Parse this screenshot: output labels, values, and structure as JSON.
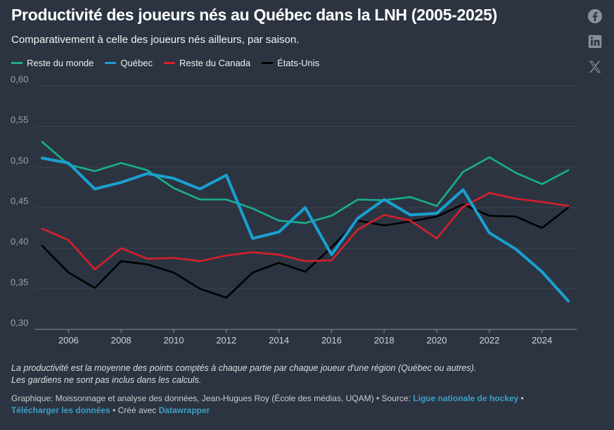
{
  "header": {
    "title": "Productivité des joueurs nés au Québec dans la LNH (2005-2025)",
    "subtitle": "Comparativement à celle des joueurs nés ailleurs, par saison."
  },
  "share_icons": [
    "facebook-icon",
    "linkedin-icon",
    "x-icon"
  ],
  "chart_data": {
    "type": "line",
    "title": "Productivité des joueurs nés au Québec dans la LNH (2005-2025)",
    "x": [
      2005,
      2006,
      2007,
      2008,
      2009,
      2010,
      2011,
      2012,
      2013,
      2014,
      2015,
      2016,
      2017,
      2018,
      2019,
      2020,
      2021,
      2022,
      2023,
      2024,
      2025
    ],
    "xticks": [
      "2006",
      "2008",
      "2010",
      "2012",
      "2014",
      "2016",
      "2018",
      "2020",
      "2022",
      "2024"
    ],
    "yticks": [
      "0,30",
      "0,35",
      "0,40",
      "0,45",
      "0,50",
      "0,55",
      "0,60"
    ],
    "ylim": [
      0.3,
      0.6
    ],
    "grid": true,
    "legend": "top-left",
    "series": [
      {
        "name": "Reste du monde",
        "color": "#19b08c",
        "values": [
          0.531,
          0.503,
          0.495,
          0.505,
          0.496,
          0.474,
          0.46,
          0.46,
          0.449,
          0.434,
          0.431,
          0.44,
          0.46,
          0.459,
          0.463,
          0.452,
          0.494,
          0.512,
          0.493,
          0.479,
          0.496
        ]
      },
      {
        "name": "Québec",
        "color": "#1aa0d0",
        "values": [
          0.511,
          0.505,
          0.473,
          0.481,
          0.492,
          0.486,
          0.473,
          0.49,
          0.412,
          0.42,
          0.45,
          0.392,
          0.437,
          0.46,
          0.441,
          0.443,
          0.472,
          0.419,
          0.399,
          0.371,
          0.335
        ]
      },
      {
        "name": "Reste du Canada",
        "color": "#d81f2a",
        "values": [
          0.424,
          0.41,
          0.374,
          0.4,
          0.387,
          0.388,
          0.384,
          0.391,
          0.395,
          0.392,
          0.384,
          0.385,
          0.423,
          0.441,
          0.434,
          0.412,
          0.451,
          0.468,
          0.461,
          0.457,
          0.452
        ]
      },
      {
        "name": "États-Unis",
        "color": "#000000",
        "values": [
          0.403,
          0.37,
          0.351,
          0.384,
          0.38,
          0.37,
          0.35,
          0.339,
          0.37,
          0.382,
          0.371,
          0.401,
          0.434,
          0.428,
          0.433,
          0.439,
          0.454,
          0.44,
          0.439,
          0.425,
          0.45
        ]
      }
    ]
  },
  "notes": [
    "La productivité est la moyenne des points comptés à chaque partie par chaque joueur d'une région (Québec ou autres).",
    "Les gardiens ne sont pas inclus dans les calculs."
  ],
  "credits": {
    "graphic": "Graphique: Moissonnage et analyse des données, Jean-Hugues Roy (École des médias, UQAM) • Source: ",
    "source_link": "Ligue nationale de hockey",
    "sep": " •",
    "download_link": "Télécharger les données",
    "made_with": " • Créé avec ",
    "datawrapper_link": "Datawrapper"
  }
}
